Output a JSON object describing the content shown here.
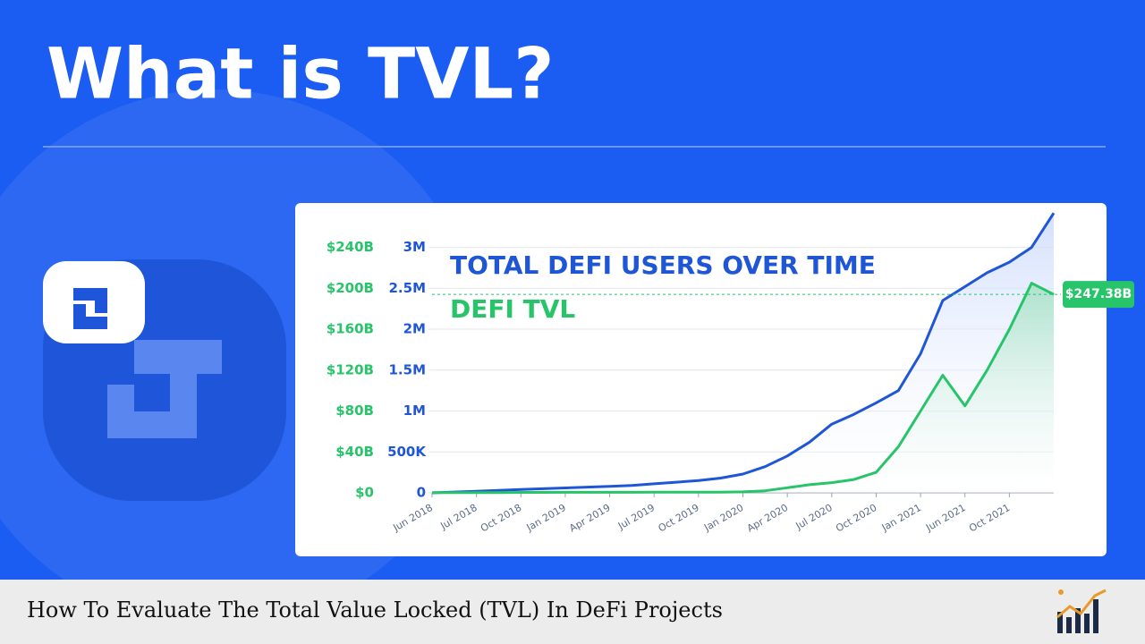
{
  "header": {
    "title": "What is TVL?"
  },
  "chart_data": {
    "type": "line",
    "categories": [
      "Jun 2018",
      null,
      "Jul 2018",
      null,
      "Oct 2018",
      null,
      "Jan 2019",
      null,
      "Apr 2019",
      null,
      "Jul 2019",
      null,
      "Oct 2019",
      null,
      "Jan 2020",
      null,
      "Apr 2020",
      null,
      "Jul 2020",
      null,
      "Oct 2020",
      null,
      "Jan 2021",
      null,
      "Jun 2021",
      null,
      "Oct 2021",
      null,
      null
    ],
    "series": [
      {
        "name": "TOTAL DEFI USERS OVER TIME",
        "color": "#1f56d6",
        "axis": "y2",
        "values": [
          0,
          10000,
          20000,
          30000,
          40000,
          50000,
          60000,
          70000,
          80000,
          90000,
          110000,
          130000,
          150000,
          180000,
          230000,
          320000,
          450000,
          620000,
          840000,
          960000,
          1100000,
          1250000,
          1700000,
          2350000,
          2520000,
          2690000,
          2820000,
          3000000,
          3420000
        ]
      },
      {
        "name": "DEFI TVL",
        "color": "#27c46a",
        "values": [
          0.3,
          0.3,
          0.3,
          0.3,
          0.4,
          0.4,
          0.5,
          0.5,
          0.5,
          0.5,
          0.6,
          0.6,
          0.7,
          0.7,
          1,
          2,
          5,
          8,
          10,
          13,
          20,
          45,
          80,
          115,
          85,
          120,
          160,
          205,
          194
        ]
      }
    ],
    "ylim": [
      0,
      272
    ],
    "yticks": [
      {
        "value": 0,
        "label": "$0"
      },
      {
        "value": 40,
        "label": "$40B"
      },
      {
        "value": 80,
        "label": "$80B"
      },
      {
        "value": 120,
        "label": "$120B"
      },
      {
        "value": 160,
        "label": "$160B"
      },
      {
        "value": 200,
        "label": "$200B"
      },
      {
        "value": 240,
        "label": "$240B"
      }
    ],
    "y2lim": [
      0,
      3400000
    ],
    "y2ticks": [
      0,
      {
        "value": 500000,
        "label": "500K"
      },
      {
        "value": 1000000,
        "label": "1M"
      },
      {
        "value": 1500000,
        "label": "1.5M"
      },
      {
        "value": 2000000,
        "label": "2M"
      },
      {
        "value": 2500000,
        "label": "2.5M"
      },
      {
        "value": 3000000,
        "label": "3M"
      }
    ],
    "grid": true,
    "annotation": "$247.38B"
  },
  "footer": {
    "caption": "How To Evaluate The Total Value Locked (TVL) In DeFi Projects"
  }
}
